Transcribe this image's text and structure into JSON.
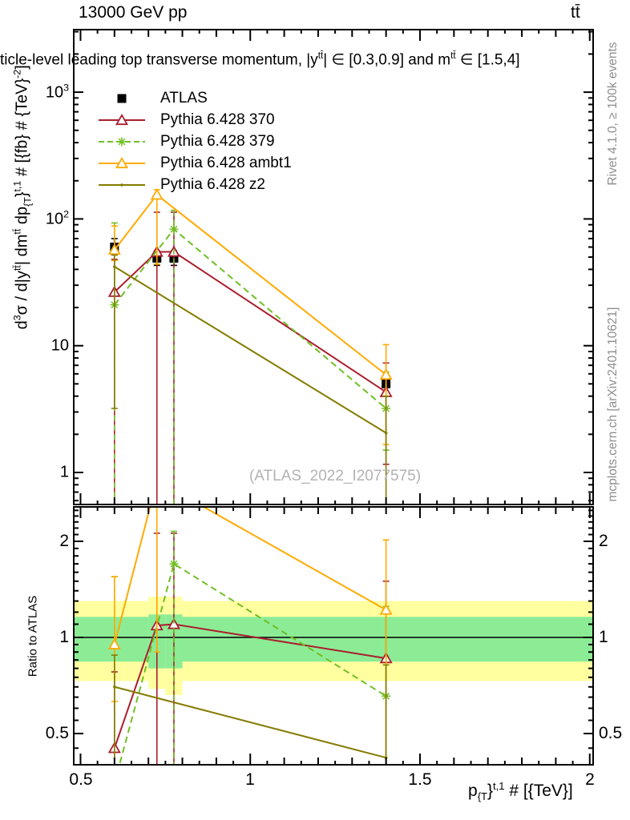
{
  "labels": {
    "energy": "13000 GeV pp",
    "process": "tt̄",
    "watermark": "(ATLAS_2022_I2077575)",
    "ratio_ylabel": "Ratio to ATLAS",
    "note_rivet": "Rivet 4.1.0, ≥ 100k events",
    "note_mcplots": "mcplots.cern.ch [arXiv:2401.10621]"
  },
  "title_parts": [
    "ticle-level leading top transverse momentum, |y",
    "tt̄",
    "| ∈ [0.3,0.9] and m",
    "tt̄",
    " ∈ [1.5,4]"
  ],
  "ylabel_parts": [
    "d",
    "3",
    "σ / d|y",
    "tt̄",
    "| dm",
    "tt̄",
    " dp",
    "{T",
    "}",
    "t,1",
    " # [{fb} # {TeV}",
    "-2",
    "]"
  ],
  "xlabel_parts": [
    "p",
    "{T",
    "}",
    "t,1",
    " # [{TeV}]"
  ],
  "legend": {
    "items": [
      {
        "label": "ATLAS"
      },
      {
        "label": "Pythia 6.428 370"
      },
      {
        "label": "Pythia 6.428 379"
      },
      {
        "label": "Pythia 6.428 ambt1"
      },
      {
        "label": "Pythia 6.428 z2"
      }
    ]
  },
  "chart_data": {
    "type": "line",
    "x_axis": {
      "label": "p_{T}^{t,1} [TeV]",
      "range": [
        0.48,
        2.01
      ],
      "major_ticks": [
        0.5,
        1.0,
        1.5,
        2.0
      ],
      "tick_labels": [
        "0.5",
        "1",
        "1.5",
        "2"
      ],
      "minor_step": 0.05
    },
    "main_panel": {
      "y_scale": "log",
      "y_range": [
        0.56,
        3100
      ],
      "y_major": [
        1,
        10,
        100,
        1000
      ],
      "ytick_labels": [
        {
          "b": "10",
          "s": "3"
        },
        {
          "b": "10",
          "s": "2"
        },
        {
          "b": "10",
          "s": ""
        },
        {
          "b": "1",
          "s": ""
        }
      ],
      "ytick_values": [
        1000,
        100,
        10,
        1
      ],
      "series": [
        {
          "name": "ATLAS",
          "color": "#000000",
          "marker": "square",
          "line": "none",
          "points": [
            [
              0.6,
              60
            ],
            [
              0.725,
              49
            ],
            [
              0.775,
              49
            ],
            [
              1.4,
              5.0
            ]
          ],
          "errors": [
            [
              52,
              70
            ],
            [
              43,
              56
            ],
            [
              43,
              56
            ],
            [
              4.2,
              5.9
            ]
          ]
        },
        {
          "name": "Pythia 6.428 370",
          "color": "#aa1e2e",
          "marker": "triangle",
          "line": "solid",
          "points": [
            [
              0.6,
              26.5
            ],
            [
              0.725,
              55
            ],
            [
              0.775,
              55
            ],
            [
              1.4,
              4.3
            ]
          ],
          "errors": [
            [
              0.5,
              48
            ],
            [
              0.5,
              113
            ],
            [
              0.5,
              113
            ],
            [
              1.16,
              7.3
            ]
          ]
        },
        {
          "name": "Pythia 6.428 379",
          "color": "#70bf24",
          "marker": "star",
          "line": "dashed",
          "points": [
            [
              0.6,
              21
            ],
            [
              0.775,
              83
            ],
            [
              1.4,
              3.2
            ]
          ],
          "errors": [
            [
              0.5,
              93
            ],
            [
              0.5,
              117
            ],
            [
              1.5,
              6.2
            ]
          ]
        },
        {
          "name": "Pythia 6.428 ambt1",
          "color": "#ffaa00",
          "marker": "triangle",
          "line": "solid",
          "points": [
            [
              0.6,
              57
            ],
            [
              0.725,
              155
            ],
            [
              1.4,
              5.9
            ]
          ],
          "errors": [
            [
              47,
              88
            ],
            [
              44,
              170
            ],
            [
              1.66,
              10.2
            ]
          ]
        },
        {
          "name": "Pythia 6.428 z2",
          "color": "#847c00",
          "marker": "dot",
          "line": "solid",
          "points": [
            [
              0.6,
              42
            ],
            [
              1.4,
              2.05
            ]
          ],
          "errors": [
            [
              3.2,
              52
            ],
            [
              0.56,
              4.0
            ]
          ]
        }
      ]
    },
    "ratio_panel": {
      "y_scale": "log",
      "y_range": [
        0.4,
        2.56
      ],
      "y_major": [
        0.5,
        1,
        2
      ],
      "ytick_labels": [
        "2",
        "1",
        "0.5"
      ],
      "ytick_values": [
        2,
        1,
        0.5
      ],
      "band_colors": {
        "yellow": "#ffffa0",
        "green": "#8cec96"
      },
      "bands": [
        {
          "x0": 0.48,
          "x1": 0.7,
          "yellow": [
            0.73,
            1.3
          ],
          "green": [
            0.84,
            1.16
          ]
        },
        {
          "x0": 0.7,
          "x1": 0.75,
          "yellow": [
            0.69,
            1.34
          ],
          "green": [
            0.8,
            1.18
          ]
        },
        {
          "x0": 0.75,
          "x1": 0.8,
          "yellow": [
            0.66,
            1.34
          ],
          "green": [
            0.8,
            1.18
          ]
        },
        {
          "x0": 0.8,
          "x1": 2.01,
          "yellow": [
            0.73,
            1.3
          ],
          "green": [
            0.84,
            1.16
          ]
        }
      ],
      "series": [
        {
          "ref": "Pythia 6.428 370",
          "points": [
            [
              0.6,
              0.45
            ],
            [
              0.725,
              1.09
            ],
            [
              0.775,
              1.1
            ],
            [
              1.4,
              0.86
            ]
          ],
          "errors": [
            [
              0.28,
              0.78
            ],
            [
              0.28,
              2.12
            ],
            [
              0.28,
              2.12
            ],
            [
              0.28,
              1.5
            ]
          ]
        },
        {
          "ref": "Pythia 6.428 379",
          "points": [
            [
              0.6,
              0.35
            ],
            [
              0.775,
              1.7
            ],
            [
              1.4,
              0.655
            ]
          ],
          "errors": [
            [
              0.28,
              1.55
            ],
            [
              0.28,
              2.15
            ],
            [
              0.28,
              1.25
            ]
          ]
        },
        {
          "ref": "Pythia 6.428 ambt1",
          "points": [
            [
              0.6,
              0.95
            ],
            [
              0.725,
              3.1
            ],
            [
              1.4,
              1.22
            ]
          ],
          "errors": [
            [
              0.63,
              1.55
            ],
            [
              0.9,
              3.45
            ],
            [
              0.35,
              2.02
            ]
          ]
        },
        {
          "ref": "Pythia 6.428 z2",
          "points": [
            [
              0.6,
              0.7
            ],
            [
              1.4,
              0.42
            ]
          ],
          "errors": [
            [
              0.28,
              0.88
            ],
            [
              0.28,
              0.82
            ]
          ]
        }
      ]
    }
  }
}
